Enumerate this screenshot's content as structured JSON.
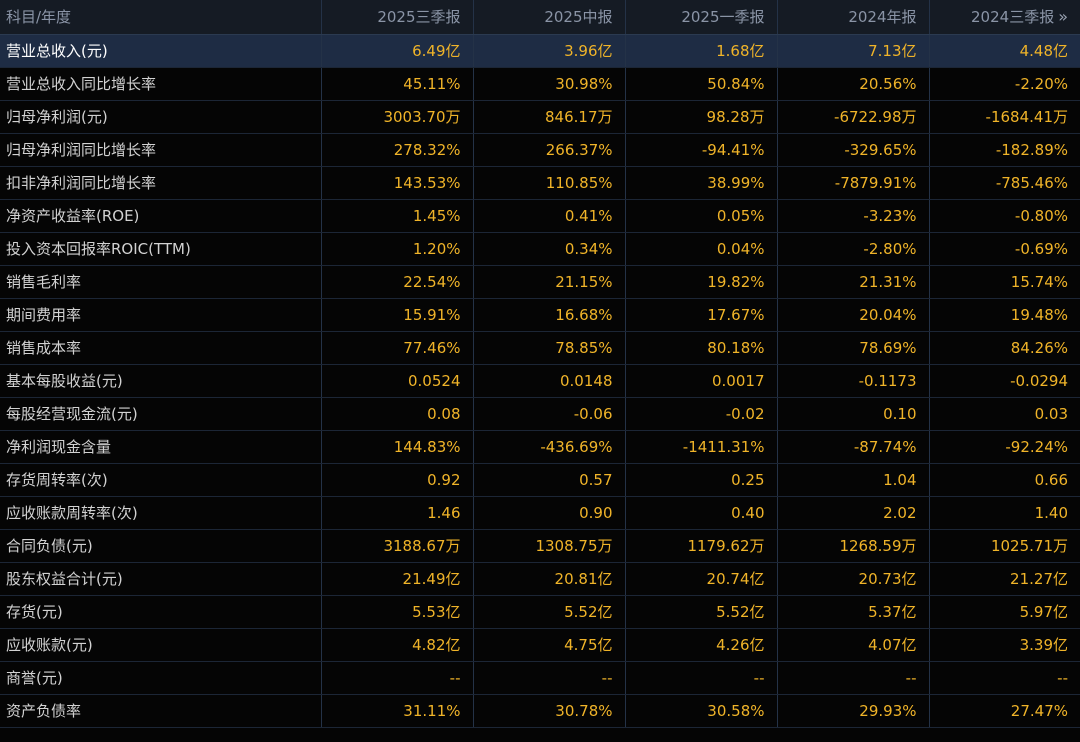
{
  "header": {
    "label": "科目/年度",
    "periods": [
      "2025三季报",
      "2025中报",
      "2025一季报",
      "2024年报",
      "2024三季报"
    ],
    "next_icon": "»"
  },
  "rows": [
    {
      "label": "营业总收入(元)",
      "values": [
        "6.49亿",
        "3.96亿",
        "1.68亿",
        "7.13亿",
        "4.48亿"
      ],
      "highlight": true
    },
    {
      "label": "营业总收入同比增长率",
      "values": [
        "45.11%",
        "30.98%",
        "50.84%",
        "20.56%",
        "-2.20%"
      ]
    },
    {
      "label": "归母净利润(元)",
      "values": [
        "3003.70万",
        "846.17万",
        "98.28万",
        "-6722.98万",
        "-1684.41万"
      ]
    },
    {
      "label": "归母净利润同比增长率",
      "values": [
        "278.32%",
        "266.37%",
        "-94.41%",
        "-329.65%",
        "-182.89%"
      ]
    },
    {
      "label": "扣非净利润同比增长率",
      "values": [
        "143.53%",
        "110.85%",
        "38.99%",
        "-7879.91%",
        "-785.46%"
      ]
    },
    {
      "label": "净资产收益率(ROE)",
      "values": [
        "1.45%",
        "0.41%",
        "0.05%",
        "-3.23%",
        "-0.80%"
      ]
    },
    {
      "label": "投入资本回报率ROIC(TTM)",
      "values": [
        "1.20%",
        "0.34%",
        "0.04%",
        "-2.80%",
        "-0.69%"
      ]
    },
    {
      "label": "销售毛利率",
      "values": [
        "22.54%",
        "21.15%",
        "19.82%",
        "21.31%",
        "15.74%"
      ]
    },
    {
      "label": "期间费用率",
      "values": [
        "15.91%",
        "16.68%",
        "17.67%",
        "20.04%",
        "19.48%"
      ]
    },
    {
      "label": "销售成本率",
      "values": [
        "77.46%",
        "78.85%",
        "80.18%",
        "78.69%",
        "84.26%"
      ]
    },
    {
      "label": "基本每股收益(元)",
      "values": [
        "0.0524",
        "0.0148",
        "0.0017",
        "-0.1173",
        "-0.0294"
      ]
    },
    {
      "label": "每股经营现金流(元)",
      "values": [
        "0.08",
        "-0.06",
        "-0.02",
        "0.10",
        "0.03"
      ]
    },
    {
      "label": "净利润现金含量",
      "values": [
        "144.83%",
        "-436.69%",
        "-1411.31%",
        "-87.74%",
        "-92.24%"
      ]
    },
    {
      "label": "存货周转率(次)",
      "values": [
        "0.92",
        "0.57",
        "0.25",
        "1.04",
        "0.66"
      ]
    },
    {
      "label": "应收账款周转率(次)",
      "values": [
        "1.46",
        "0.90",
        "0.40",
        "2.02",
        "1.40"
      ]
    },
    {
      "label": "合同负债(元)",
      "values": [
        "3188.67万",
        "1308.75万",
        "1179.62万",
        "1268.59万",
        "1025.71万"
      ]
    },
    {
      "label": "股东权益合计(元)",
      "values": [
        "21.49亿",
        "20.81亿",
        "20.74亿",
        "20.73亿",
        "21.27亿"
      ]
    },
    {
      "label": "存货(元)",
      "values": [
        "5.53亿",
        "5.52亿",
        "5.52亿",
        "5.37亿",
        "5.97亿"
      ]
    },
    {
      "label": "应收账款(元)",
      "values": [
        "4.82亿",
        "4.75亿",
        "4.26亿",
        "4.07亿",
        "3.39亿"
      ]
    },
    {
      "label": "商誉(元)",
      "values": [
        "--",
        "--",
        "--",
        "--",
        "--"
      ]
    },
    {
      "label": "资产负债率",
      "values": [
        "31.11%",
        "30.78%",
        "30.58%",
        "29.93%",
        "27.47%"
      ]
    }
  ],
  "colors": {
    "background": "#050505",
    "header_bg": "#151b24",
    "highlight_bg": "#1e2c44",
    "value_text": "#f0b429",
    "label_text": "#d2d2d2",
    "header_text": "#8a94a6"
  }
}
